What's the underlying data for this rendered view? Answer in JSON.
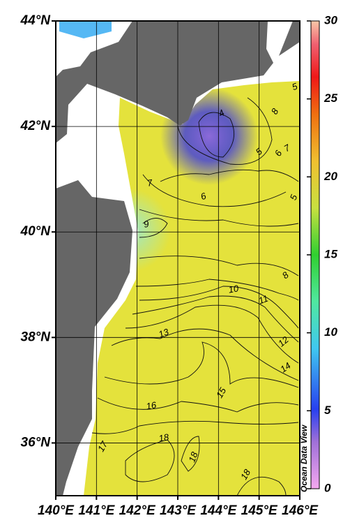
{
  "chart_data": {
    "type": "map",
    "xlim": [
      140,
      146
    ],
    "ylim": [
      35,
      44
    ],
    "xticks": [
      {
        "value": 140,
        "label": "140°E"
      },
      {
        "value": 141,
        "label": "141°E"
      },
      {
        "value": 142,
        "label": "142°E"
      },
      {
        "value": 143,
        "label": "143°E"
      },
      {
        "value": 144,
        "label": "144°E"
      },
      {
        "value": 145,
        "label": "145°E"
      },
      {
        "value": 146,
        "label": "146°E"
      }
    ],
    "yticks": [
      {
        "value": 36,
        "label": "36°N"
      },
      {
        "value": 38,
        "label": "38°N"
      },
      {
        "value": 40,
        "label": "40°N"
      },
      {
        "value": 42,
        "label": "42°N"
      },
      {
        "value": 44,
        "label": "44°N"
      }
    ],
    "colorbar": {
      "lim": [
        0,
        30
      ],
      "ticks": [
        0,
        5,
        10,
        15,
        20,
        25,
        30
      ]
    },
    "contour_labels": [
      4,
      5,
      8,
      5,
      6,
      7,
      7,
      6,
      5,
      9,
      8,
      10,
      11,
      13,
      12,
      14,
      15,
      16,
      17,
      18,
      18,
      18
    ],
    "watermark": "Ocean Data View",
    "grid": true
  }
}
